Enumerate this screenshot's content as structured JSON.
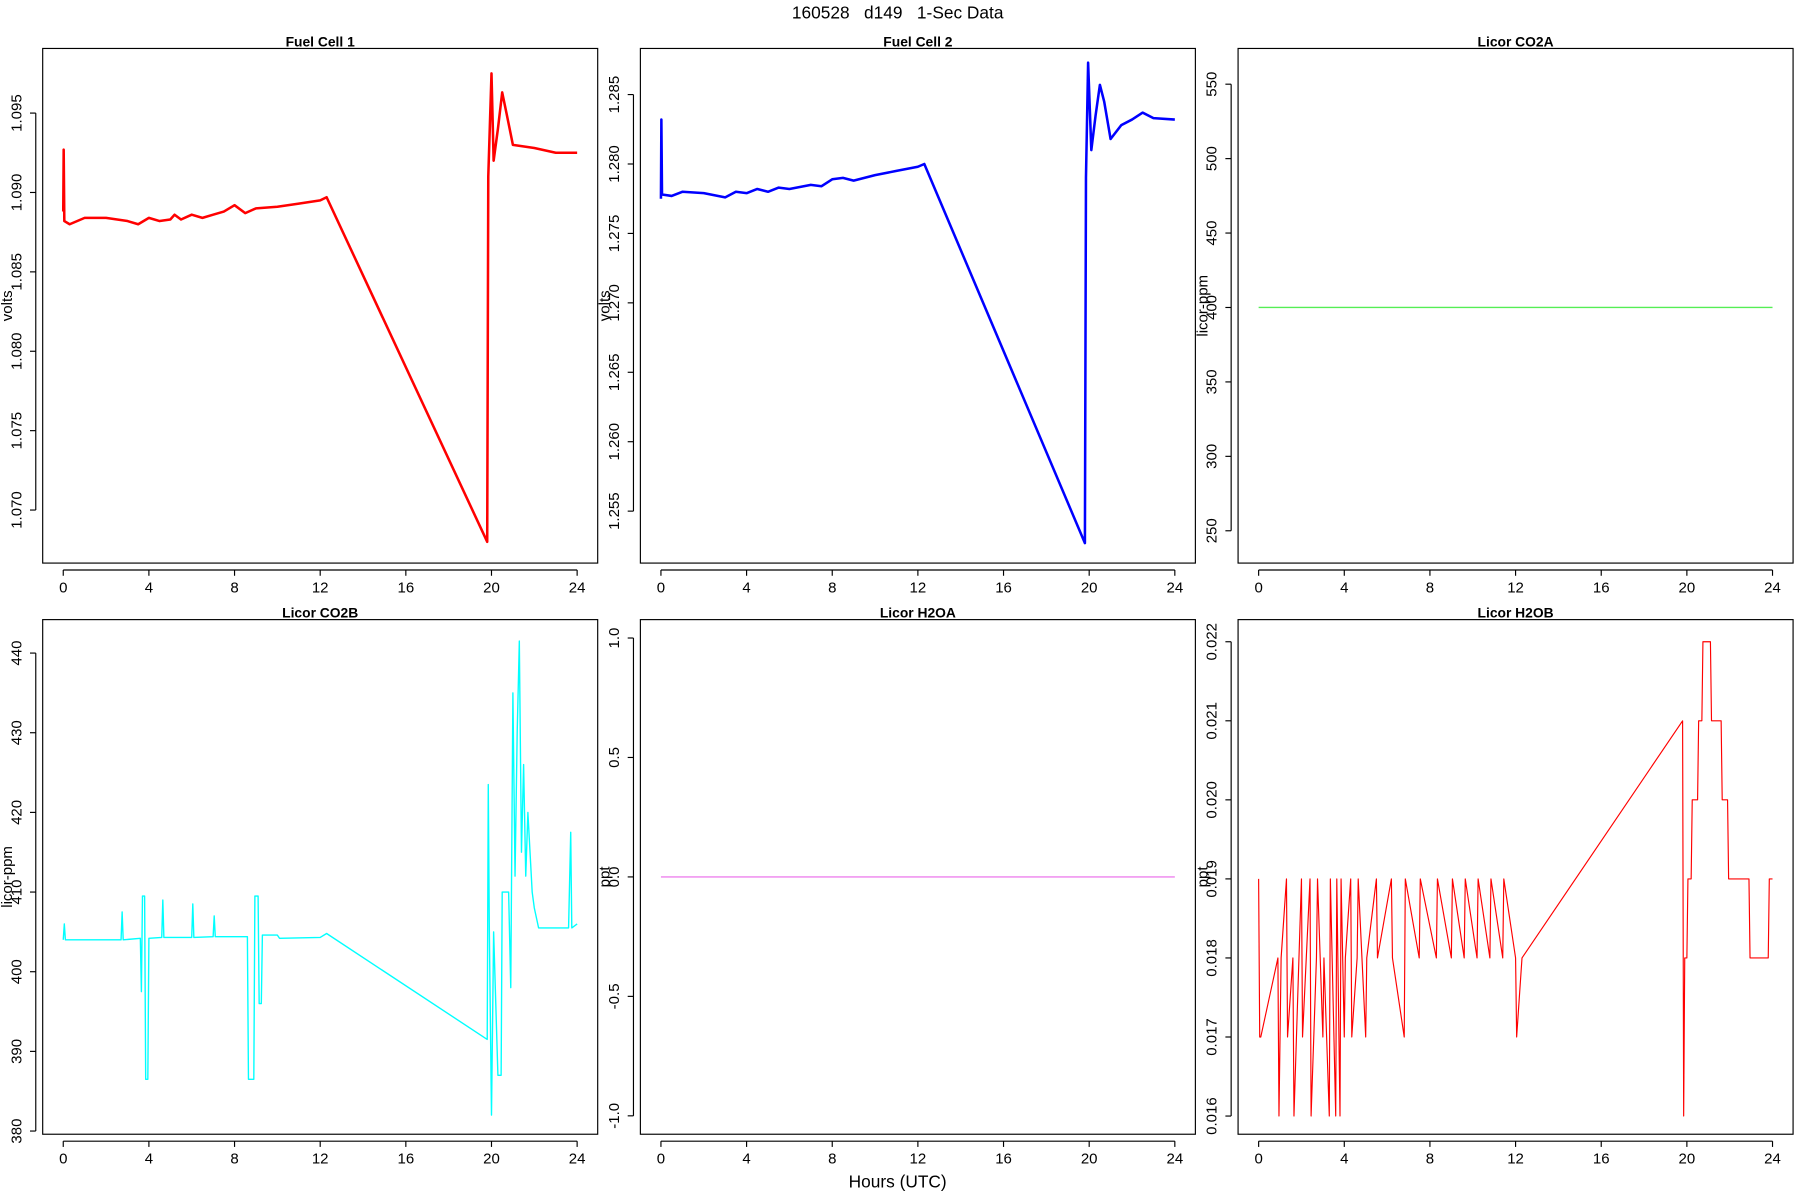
{
  "title": "160528   d149   1-Sec Data",
  "xlabel": "Hours (UTC)",
  "chart_data": [
    {
      "type": "line",
      "title": "Fuel Cell 1",
      "ylabel": "volts",
      "xlim": [
        -0.96,
        24.96
      ],
      "xticks": [
        0,
        4,
        8,
        12,
        16,
        20,
        24
      ],
      "ylim": [
        1.06666,
        1.09907
      ],
      "yticks": [
        {
          "value": 1.07,
          "label": "1.070"
        },
        1.075,
        {
          "value": 1.08,
          "label": "1.080"
        },
        1.085,
        {
          "value": 1.09,
          "label": "1.090"
        },
        1.095
      ],
      "series": [
        {
          "name": "Fuel Cell 1",
          "color": "#ff0000",
          "width": 2.2,
          "x": [
            0,
            0.02,
            0.05,
            0.3,
            1,
            2,
            3,
            3.5,
            4,
            4.5,
            5,
            5.2,
            5.5,
            6,
            6.5,
            7,
            7.5,
            8,
            8.5,
            9,
            10,
            11,
            12,
            12.3,
            19.8,
            19.85,
            20.0,
            20.1,
            20.3,
            20.5,
            20.7,
            21,
            22,
            23,
            24
          ],
          "values": [
            1.0888,
            1.0927,
            1.0882,
            1.088,
            1.0884,
            1.0884,
            1.0882,
            1.088,
            1.0884,
            1.0882,
            1.0883,
            1.0886,
            1.0883,
            1.0886,
            1.0884,
            1.0886,
            1.0888,
            1.0892,
            1.0887,
            1.089,
            1.0891,
            1.0893,
            1.0895,
            1.0897,
            1.068,
            1.091,
            1.0975,
            1.092,
            1.094,
            1.0963,
            1.095,
            1.093,
            1.0928,
            1.0925,
            1.0925
          ]
        }
      ]
    },
    {
      "type": "line",
      "title": "Fuel Cell 2",
      "ylabel": "volts",
      "xlim": [
        -0.96,
        24.96
      ],
      "xticks": [
        0,
        4,
        8,
        12,
        16,
        20,
        24
      ],
      "ylim": [
        1.25126,
        1.28832
      ],
      "yticks": [
        1.255,
        {
          "value": 1.26,
          "label": "1.260"
        },
        1.265,
        {
          "value": 1.27,
          "label": "1.270"
        },
        1.275,
        {
          "value": 1.28,
          "label": "1.280"
        },
        1.285
      ],
      "series": [
        {
          "name": "Fuel Cell 2",
          "color": "#0000ff",
          "width": 2.2,
          "x": [
            0,
            0.02,
            0.05,
            0.5,
            1,
            2,
            3,
            3.5,
            4,
            4.5,
            5,
            5.5,
            6,
            7,
            7.5,
            8,
            8.5,
            9,
            10,
            11,
            12,
            12.3,
            19.8,
            19.85,
            19.95,
            20.1,
            20.3,
            20.5,
            20.7,
            21,
            21.5,
            22,
            22.5,
            23,
            24
          ],
          "values": [
            1.2775,
            1.2832,
            1.2778,
            1.2777,
            1.278,
            1.2779,
            1.2776,
            1.278,
            1.2779,
            1.2782,
            1.278,
            1.2783,
            1.2782,
            1.2785,
            1.2784,
            1.2789,
            1.279,
            1.2788,
            1.2792,
            1.2795,
            1.2798,
            1.28,
            1.2527,
            1.279,
            1.2873,
            1.281,
            1.2835,
            1.2857,
            1.2845,
            1.2818,
            1.2828,
            1.2832,
            1.2837,
            1.2833,
            1.2832
          ]
        }
      ]
    },
    {
      "type": "line",
      "title": "Licor CO2A",
      "ylabel": "licor-ppm",
      "xlim": [
        -0.96,
        24.96
      ],
      "xticks": [
        0,
        4,
        8,
        12,
        16,
        20,
        24
      ],
      "ylim": [
        228.3,
        574
      ],
      "yticks": [
        250,
        300,
        350,
        400,
        450,
        500,
        550
      ],
      "series": [
        {
          "name": "Licor CO2A",
          "color": "#55ee55",
          "width": 1.2,
          "x": [
            0,
            24
          ],
          "values": [
            400,
            400
          ]
        }
      ]
    },
    {
      "type": "line",
      "title": "Licor CO2B",
      "ylabel": "licor-ppm",
      "xlim": [
        -0.96,
        24.96
      ],
      "xticks": [
        0,
        4,
        8,
        12,
        16,
        20,
        24
      ],
      "ylim": [
        379.6,
        444.2
      ],
      "yticks": [
        380,
        390,
        400,
        410,
        420,
        430,
        440
      ],
      "series": [
        {
          "name": "Licor CO2B",
          "color": "#00ffff",
          "width": 1.2,
          "x": [
            0,
            0.05,
            0.1,
            2.7,
            2.75,
            2.8,
            3.6,
            3.65,
            3.7,
            3.8,
            3.85,
            3.95,
            4.0,
            4.6,
            4.65,
            4.7,
            6,
            6.05,
            6.1,
            7,
            7.05,
            7.1,
            8.6,
            8.65,
            8.9,
            8.95,
            9.1,
            9.15,
            9.25,
            9.3,
            10,
            10.1,
            12,
            12.3,
            19.8,
            19.85,
            19.9,
            20,
            20.1,
            20.2,
            20.3,
            20.45,
            20.5,
            20.8,
            20.9,
            21.0,
            21.1,
            21.2,
            21.3,
            21.4,
            21.5,
            21.6,
            21.7,
            21.9,
            22,
            22.2,
            23.6,
            23.7,
            23.75,
            24
          ],
          "values": [
            404,
            406,
            404,
            404,
            407.5,
            404,
            404.2,
            397.5,
            409.5,
            409.5,
            386.5,
            386.5,
            404.2,
            404.3,
            409,
            404.3,
            404.3,
            408.5,
            404.3,
            404.4,
            407,
            404.4,
            404.4,
            386.5,
            386.5,
            409.5,
            409.5,
            396,
            396,
            404.6,
            404.6,
            404.2,
            404.3,
            404.8,
            391.5,
            423.5,
            405,
            382,
            405,
            396,
            387,
            387,
            410,
            410,
            398,
            435,
            412,
            430,
            441.5,
            415,
            426,
            412,
            420,
            410,
            408,
            405.5,
            405.5,
            417.5,
            405.5,
            406
          ]
        }
      ]
    },
    {
      "type": "line",
      "title": "Licor H2OA",
      "ylabel": "ppt",
      "xlim": [
        -0.96,
        24.96
      ],
      "xticks": [
        0,
        4,
        8,
        12,
        16,
        20,
        24
      ],
      "ylim": [
        -1.077,
        1.077
      ],
      "yticks": [
        {
          "value": -1.0,
          "label": "-1.0"
        },
        -0.5,
        {
          "value": 0.0,
          "label": "0.0"
        },
        0.5,
        {
          "value": 1.0,
          "label": "1.0"
        }
      ],
      "series": [
        {
          "name": "Licor H2OA",
          "color": "#ee82ee",
          "width": 1.2,
          "x": [
            0,
            24
          ],
          "values": [
            0,
            0
          ]
        }
      ]
    },
    {
      "type": "line",
      "title": "Licor H2OB",
      "ylabel": "ppt",
      "xlim": [
        -0.96,
        24.96
      ],
      "xticks": [
        0,
        4,
        8,
        12,
        16,
        20,
        24
      ],
      "ylim": [
        0.01577,
        0.02228
      ],
      "yticks": [
        0.016,
        0.017,
        0.018,
        0.019,
        {
          "value": 0.02,
          "label": "0.020"
        },
        0.021,
        0.022
      ],
      "series": [
        {
          "name": "Licor H2OB",
          "color": "#ff0000",
          "width": 1,
          "x": [
            0,
            0.05,
            0.1,
            0.9,
            0.95,
            1.0,
            1.05,
            1.3,
            1.35,
            1.6,
            1.65,
            2.0,
            2.05,
            2.4,
            2.45,
            2.7,
            2.75,
            3.0,
            3.05,
            3.3,
            3.35,
            3.6,
            3.65,
            3.8,
            3.85,
            4.0,
            4.05,
            4.3,
            4.35,
            4.6,
            4.65,
            5.0,
            5.05,
            5.5,
            5.55,
            6.2,
            6.25,
            6.8,
            6.85,
            7.5,
            7.55,
            8.3,
            8.35,
            9.0,
            9.05,
            9.6,
            9.65,
            10.2,
            10.25,
            10.8,
            10.85,
            11.4,
            11.45,
            12.0,
            12.05,
            12.3,
            19.8,
            19.85,
            19.9,
            20.0,
            20.05,
            20.2,
            20.25,
            20.5,
            20.55,
            20.7,
            20.75,
            21.1,
            21.15,
            21.6,
            21.65,
            21.9,
            21.95,
            22.9,
            22.95,
            23.8,
            23.85,
            24.0
          ],
          "values": [
            0.019,
            0.017,
            0.017,
            0.018,
            0.016,
            0.017,
            0.018,
            0.019,
            0.017,
            0.018,
            0.016,
            0.019,
            0.017,
            0.019,
            0.016,
            0.018,
            0.019,
            0.017,
            0.018,
            0.016,
            0.019,
            0.016,
            0.019,
            0.016,
            0.019,
            0.017,
            0.018,
            0.019,
            0.017,
            0.018,
            0.019,
            0.017,
            0.018,
            0.019,
            0.018,
            0.019,
            0.018,
            0.017,
            0.019,
            0.018,
            0.019,
            0.018,
            0.019,
            0.018,
            0.019,
            0.018,
            0.019,
            0.018,
            0.019,
            0.018,
            0.019,
            0.018,
            0.019,
            0.018,
            0.017,
            0.018,
            0.021,
            0.016,
            0.018,
            0.018,
            0.019,
            0.019,
            0.02,
            0.02,
            0.021,
            0.021,
            0.022,
            0.022,
            0.021,
            0.021,
            0.02,
            0.02,
            0.019,
            0.019,
            0.018,
            0.018,
            0.019,
            0.019
          ]
        }
      ]
    }
  ]
}
